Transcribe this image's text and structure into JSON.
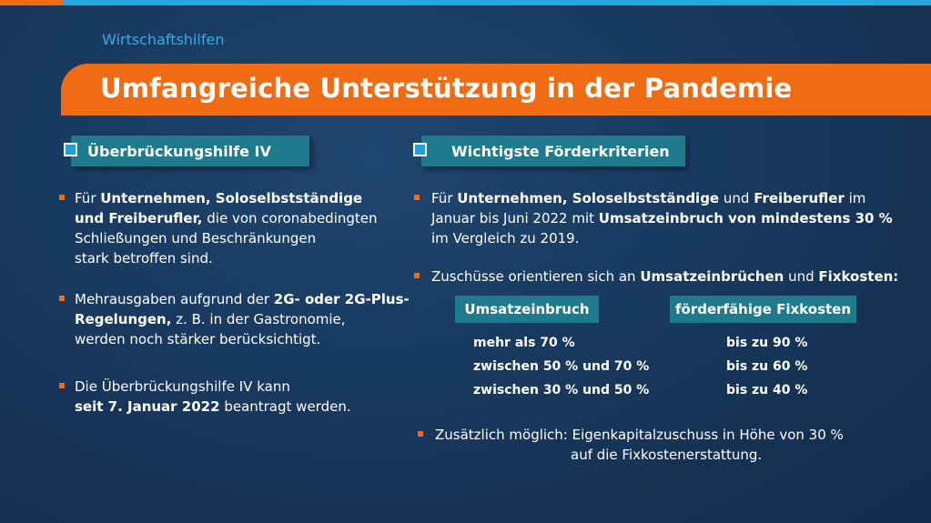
{
  "header": {
    "kicker": "Wirtschaftshilfen",
    "title": "Umfangreiche Unterstützung in der Pandemie"
  },
  "left": {
    "heading": "Überbrückungshilfe IV",
    "bullets": [
      {
        "l1a": "Für ",
        "l1b": "Unternehmen, Soloselbstständige",
        "l2a": "und Freiberufler,",
        "l2b": " die von coronabedingten",
        "l3": "Schließungen und Beschränkungen",
        "l4": "stark betroffen sind."
      },
      {
        "l1a": "Mehrausgaben aufgrund der ",
        "l1b": "2G- oder 2G-Plus-",
        "l2a": "Regelungen,",
        "l2b": " z. B. in der Gastronomie,",
        "l3": "werden noch stärker berücksichtigt."
      },
      {
        "l1": "Die Überbrückungshilfe IV kann",
        "l2a": "seit 7. Januar 2022",
        "l2b": " beantragt werden."
      }
    ]
  },
  "right": {
    "heading": "Wichtigste Förderkriterien",
    "bullet1": {
      "l1a": "Für ",
      "l1b": "Unternehmen, Soloselbstständige",
      "l1c": " und ",
      "l1d": "Freiberufler",
      "l1e": " im",
      "l2a": "Januar bis Juni 2022 mit ",
      "l2b": "Umsatzeinbruch von mindestens 30 %",
      "l3": "im Vergleich zu 2019."
    },
    "bullet2": {
      "a": "Zuschüsse orientieren sich an ",
      "b": "Umsatzeinbrüchen",
      "c": " und ",
      "d": "Fixkosten:"
    },
    "table": {
      "col1": "Umsatzeinbruch",
      "col2": "förderfähige Fixkosten",
      "rows": [
        {
          "a": "mehr als 70 %",
          "b": "bis zu 90 %"
        },
        {
          "a": "zwischen 50 % und 70 %",
          "b": "bis zu 60 %"
        },
        {
          "a": "zwischen 30 % und 50 %",
          "b": "bis zu 40 %"
        }
      ]
    },
    "bullet3": {
      "l1": "Zusätzlich möglich: Eigenkapitalzuschuss in Höhe von 30 %",
      "l2": "auf die Fixkostenerstattung."
    }
  },
  "colors": {
    "orange": "#ef6b14",
    "teal": "#1e7a8c",
    "blue": "#25a8e0",
    "navy": "#17365a"
  }
}
